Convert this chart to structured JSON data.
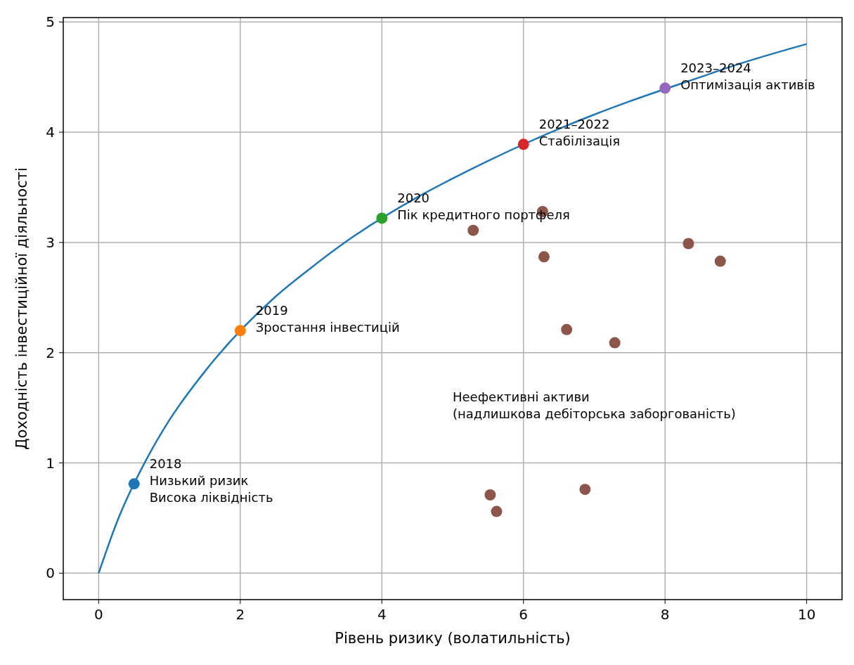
{
  "chart_data": {
    "type": "scatter",
    "xlabel": "Рівень ризику (волатильність)",
    "ylabel": "Доходність інвестиційної діяльності",
    "xlim": [
      -0.5,
      10.5
    ],
    "ylim": [
      -0.24,
      5.04
    ],
    "xticks": [
      0,
      2,
      4,
      6,
      8,
      10
    ],
    "yticks": [
      0,
      1,
      2,
      3,
      4,
      5
    ],
    "grid": true,
    "series": [
      {
        "type": "line",
        "color": "#1f77b4",
        "x": [
          0,
          0.25,
          0.75,
          1,
          1.5,
          2.5,
          3,
          3.5,
          4.5,
          5,
          5.5,
          6.5,
          7,
          7.5,
          8.5,
          9,
          10
        ],
        "values": [
          0,
          0.45,
          1.12,
          1.39,
          1.83,
          2.51,
          2.77,
          3.01,
          3.41,
          3.58,
          3.74,
          4.03,
          4.16,
          4.28,
          4.5,
          4.61,
          4.8
        ],
        "marker": "none"
      },
      {
        "type": "scatter",
        "x": [
          0.5,
          2,
          4,
          6,
          8
        ],
        "values": [
          0.81,
          2.2,
          3.22,
          3.89,
          4.4
        ],
        "colors": [
          "#1f77b4",
          "#ff7f0e",
          "#2ca02c",
          "#d62728",
          "#9467bd"
        ],
        "marker": "circle"
      },
      {
        "type": "scatter",
        "color": "#8c564b",
        "x": [
          5.29,
          6.27,
          6.29,
          6.61,
          7.29,
          8.33,
          8.78,
          5.53,
          5.62,
          6.87
        ],
        "values": [
          3.11,
          3.28,
          2.87,
          2.21,
          2.09,
          2.99,
          2.83,
          0.71,
          0.56,
          0.76
        ],
        "marker": "circle"
      }
    ],
    "annotations": [
      {
        "text": "2018\nНизький ризик\nВисока ліквідність",
        "x": 0.5,
        "y": 0.81
      },
      {
        "text": "2019\nЗростання інвестицій",
        "x": 2,
        "y": 2.2
      },
      {
        "text": "2020\nПік кредитного портфеля",
        "x": 4,
        "y": 3.22
      },
      {
        "text": "2021–2022\nСтабілізація",
        "x": 6,
        "y": 3.89
      },
      {
        "text": "2023–2024\nОптимізація активів",
        "x": 8,
        "y": 4.4
      },
      "Неефективні активи\n(надлишкова дебіторська заборгованість)"
    ]
  }
}
